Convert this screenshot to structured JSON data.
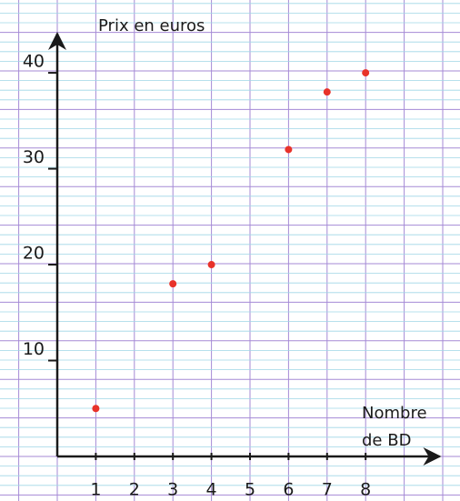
{
  "chart_data": {
    "type": "scatter",
    "y_label": "Prix en euros",
    "x_label": "Nombre de BD",
    "x": [
      1,
      3,
      4,
      6,
      7,
      8
    ],
    "values": [
      5,
      18,
      20,
      32,
      38,
      40
    ],
    "color": "#e8322a",
    "xlim": [
      0,
      9.8
    ],
    "xticks": [
      1,
      2,
      3,
      4,
      5,
      6,
      7,
      8
    ],
    "ylim": [
      0,
      43.8
    ],
    "yticks": [
      10,
      20,
      30,
      40
    ]
  }
}
